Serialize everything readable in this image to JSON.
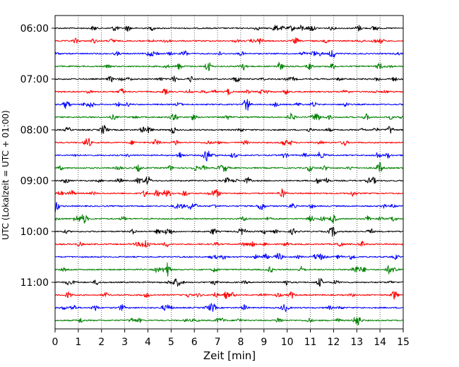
{
  "chart_data": {
    "type": "line",
    "title": "",
    "xlabel": "Zeit  [min]",
    "ylabel": "UTC (Lokalzeit = UTC + 01:00)",
    "xlim": [
      0,
      15
    ],
    "x_ticks": [
      "0",
      "1",
      "2",
      "3",
      "4",
      "5",
      "6",
      "7",
      "8",
      "9",
      "10",
      "11",
      "12",
      "13",
      "14",
      "15"
    ],
    "y_ticks": [
      "06:00",
      "07:00",
      "08:00",
      "09:00",
      "10:00",
      "11:00"
    ],
    "grid": "vertical dotted at each minute",
    "trace_interval_minutes": 15,
    "trace_start": "06:00",
    "trace_count": 24,
    "colors": [
      "#000000",
      "#ff0000",
      "#0000ff",
      "#008000"
    ]
  }
}
